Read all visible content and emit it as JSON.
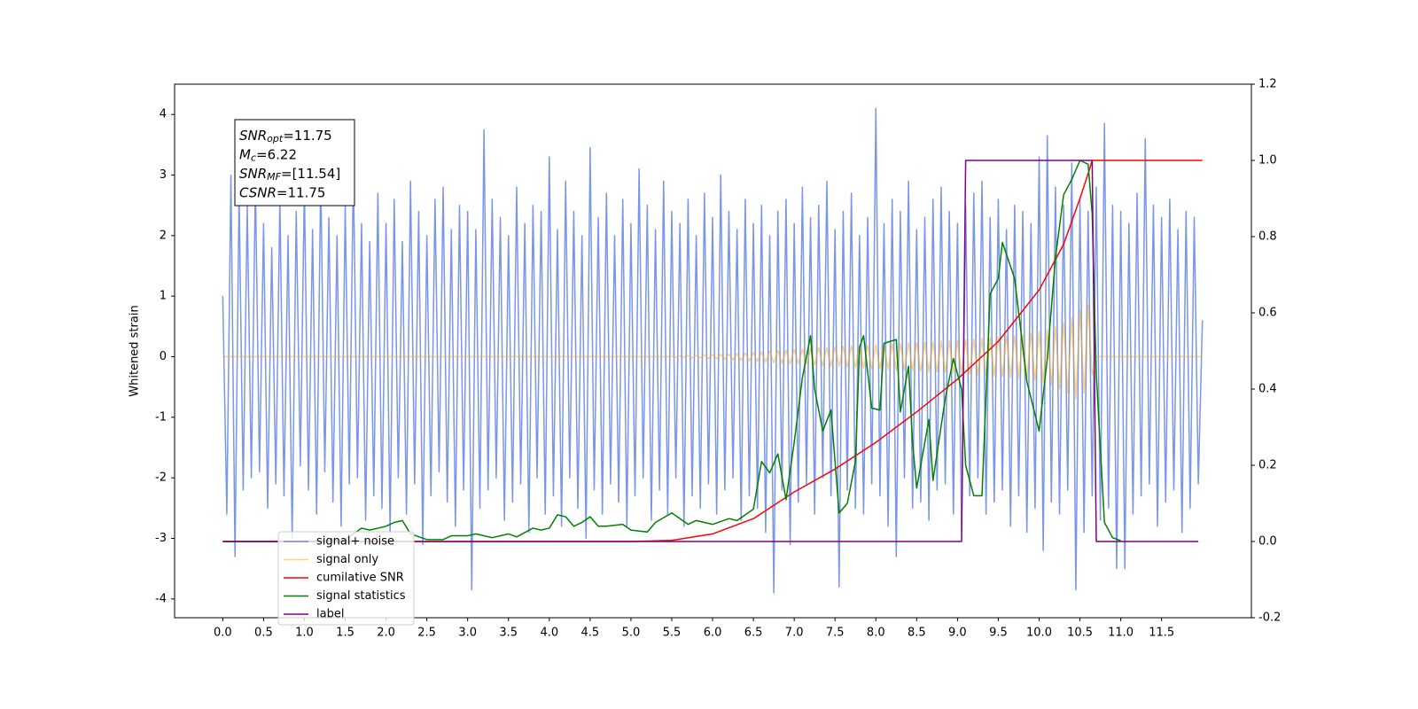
{
  "chart_data": {
    "type": "line",
    "ylabel": "Whitened strain",
    "annotations": [
      {
        "base": "SNR",
        "sub": "opt",
        "text": "=11.75"
      },
      {
        "base": "M",
        "sub": "c",
        "text": "=6.22"
      },
      {
        "base": "SNR",
        "sub": "MF",
        "text": "=[11.54]"
      },
      {
        "base": "CSNR",
        "text": "=11.75"
      }
    ],
    "xlim": [
      -0.59,
      12.6
    ],
    "ylim": [
      -4.31,
      4.5
    ],
    "y2lim": [
      -0.2,
      1.2
    ],
    "xticks": [
      {
        "value": 0,
        "label": "0.0"
      },
      0.5,
      {
        "value": 1,
        "label": "1.0"
      },
      1.5,
      {
        "value": 2,
        "label": "2.0"
      },
      2.5,
      {
        "value": 3,
        "label": "3.0"
      },
      3.5,
      {
        "value": 4,
        "label": "4.0"
      },
      4.5,
      {
        "value": 5,
        "label": "5.0"
      },
      5.5,
      {
        "value": 6,
        "label": "6.0"
      },
      6.5,
      {
        "value": 7,
        "label": "7.0"
      },
      7.5,
      {
        "value": 8,
        "label": "8.0"
      },
      8.5,
      {
        "value": 9,
        "label": "9.0"
      },
      9.5,
      {
        "value": 10,
        "label": "10.0"
      },
      10.5,
      {
        "value": 11,
        "label": "11.0"
      },
      11.5
    ],
    "yticks": [
      -4,
      -3,
      -2,
      -1,
      0,
      1,
      2,
      3,
      4
    ],
    "y2ticks": [
      -0.2,
      {
        "value": 0,
        "label": "0.0"
      },
      0.2,
      0.4,
      0.6,
      0.8,
      {
        "value": 1,
        "label": "1.0"
      },
      {
        "value": 1.2,
        "label": "1.2"
      }
    ],
    "legend": "lower left",
    "x": [
      0,
      0.05,
      0.1,
      0.15,
      0.2,
      0.25,
      0.3,
      0.35,
      0.4,
      0.45,
      0.5,
      0.55,
      0.6,
      0.65,
      0.7,
      0.75,
      0.8,
      0.85,
      0.9,
      0.95,
      1,
      1.05,
      1.1,
      1.15,
      1.2,
      1.25,
      1.3,
      1.35,
      1.4,
      1.45,
      1.5,
      1.55,
      1.6,
      1.65,
      1.7,
      1.75,
      1.8,
      1.85,
      1.9,
      1.95,
      2,
      2.05,
      2.1,
      2.15,
      2.2,
      2.25,
      2.3,
      2.35,
      2.4,
      2.45,
      2.5,
      2.55,
      2.6,
      2.65,
      2.7,
      2.75,
      2.8,
      2.85,
      2.9,
      2.95,
      3,
      3.05,
      3.1,
      3.15,
      3.2,
      3.25,
      3.3,
      3.35,
      3.4,
      3.45,
      3.5,
      3.55,
      3.6,
      3.65,
      3.7,
      3.75,
      3.8,
      3.85,
      3.9,
      3.95,
      4,
      4.05,
      4.1,
      4.15,
      4.2,
      4.25,
      4.3,
      4.35,
      4.4,
      4.45,
      4.5,
      4.55,
      4.6,
      4.65,
      4.7,
      4.75,
      4.8,
      4.85,
      4.9,
      4.95,
      5,
      5.05,
      5.1,
      5.15,
      5.2,
      5.25,
      5.3,
      5.35,
      5.4,
      5.45,
      5.5,
      5.55,
      5.6,
      5.65,
      5.7,
      5.75,
      5.8,
      5.85,
      5.9,
      5.95,
      6,
      6.05,
      6.1,
      6.15,
      6.2,
      6.25,
      6.3,
      6.35,
      6.4,
      6.45,
      6.5,
      6.55,
      6.6,
      6.65,
      6.7,
      6.75,
      6.8,
      6.85,
      6.9,
      6.95,
      7,
      7.05,
      7.1,
      7.15,
      7.2,
      7.25,
      7.3,
      7.35,
      7.4,
      7.45,
      7.5,
      7.55,
      7.6,
      7.65,
      7.7,
      7.75,
      7.8,
      7.85,
      7.9,
      7.95,
      8,
      8.05,
      8.1,
      8.15,
      8.2,
      8.25,
      8.3,
      8.35,
      8.4,
      8.45,
      8.5,
      8.55,
      8.6,
      8.65,
      8.7,
      8.75,
      8.8,
      8.85,
      8.9,
      8.95,
      9,
      9.05,
      9.1,
      9.15,
      9.2,
      9.25,
      9.3,
      9.35,
      9.4,
      9.45,
      9.5,
      9.55,
      9.6,
      9.65,
      9.7,
      9.75,
      9.8,
      9.85,
      9.9,
      9.95,
      10,
      10.05,
      10.1,
      10.15,
      10.2,
      10.25,
      10.3,
      10.35,
      10.4,
      10.45,
      10.5,
      10.55,
      10.6,
      10.65,
      10.7,
      10.75,
      10.8,
      10.85,
      10.9,
      10.95,
      11,
      11.05,
      11.1,
      11.15,
      11.2,
      11.25,
      11.3,
      11.35,
      11.4,
      11.45,
      11.5,
      11.55,
      11.6,
      11.65,
      11.7,
      11.75,
      11.8,
      11.85,
      11.9,
      11.95,
      12
    ],
    "series": [
      {
        "name": "signal+ noise",
        "color": "#4169e1",
        "values": [
          1.0,
          -2.6,
          3.0,
          -3.3,
          2.7,
          -2.2,
          2.5,
          -2.0,
          2.9,
          -1.9,
          2.2,
          -2.5,
          1.8,
          -2.1,
          2.6,
          -2.3,
          2.0,
          -3.0,
          2.4,
          -1.8,
          2.8,
          -2.2,
          2.1,
          -2.6,
          3.0,
          -1.9,
          2.3,
          -2.4,
          2.0,
          -2.8,
          2.5,
          -2.1,
          3.1,
          -2.0,
          2.2,
          -2.7,
          1.9,
          -2.3,
          2.7,
          -2.5,
          2.2,
          -2.9,
          2.6,
          -2.0,
          1.9,
          -2.6,
          2.9,
          -2.1,
          2.4,
          -3.1,
          2.0,
          -2.3,
          2.6,
          -1.9,
          2.8,
          -2.4,
          2.1,
          -2.8,
          2.5,
          -2.2,
          2.4,
          -3.85,
          2.1,
          -2.5,
          3.75,
          -2.2,
          2.6,
          -2.0,
          2.3,
          -2.7,
          2.0,
          -2.4,
          2.8,
          -2.1,
          2.2,
          -2.9,
          2.5,
          -2.0,
          2.4,
          -2.6,
          3.3,
          -2.3,
          2.1,
          -2.8,
          2.9,
          -2.0,
          2.4,
          -2.5,
          2.0,
          -3.0,
          3.45,
          -2.2,
          2.3,
          -2.6,
          2.7,
          -2.1,
          2.0,
          -2.4,
          2.6,
          -2.8,
          2.2,
          -2.3,
          3.1,
          -2.0,
          2.5,
          -2.7,
          2.1,
          -2.2,
          2.9,
          -2.6,
          2.4,
          -2.0,
          2.2,
          -2.8,
          2.6,
          -2.3,
          2.0,
          -2.5,
          2.7,
          -2.1,
          2.3,
          -2.6,
          3.0,
          -2.2,
          2.4,
          -2.0,
          2.1,
          -2.7,
          2.6,
          -2.3,
          2.2,
          -2.5,
          2.5,
          -2.9,
          2.0,
          -3.9,
          2.4,
          -2.2,
          2.6,
          -3.1,
          2.2,
          -2.4,
          2.8,
          -2.1,
          2.3,
          -2.6,
          2.5,
          -2.0,
          2.9,
          -2.3,
          2.1,
          -3.8,
          2.4,
          -2.2,
          2.7,
          -2.5,
          2.0,
          -2.6,
          2.3,
          -2.1,
          4.1,
          -2.3,
          2.2,
          -2.8,
          2.6,
          -3.3,
          2.4,
          -2.0,
          2.9,
          -2.5,
          2.1,
          -2.4,
          2.3,
          -2.7,
          2.6,
          -2.2,
          2.8,
          -2.1,
          2.4,
          -2.6,
          2.2,
          -2.9,
          2.5,
          -2.3,
          2.7,
          -2.0,
          2.9,
          -2.6,
          2.3,
          -2.4,
          2.6,
          -2.2,
          2.1,
          -2.8,
          2.5,
          -2.3,
          2.4,
          -2.9,
          2.2,
          -2.5,
          3.3,
          -3.2,
          3.65,
          -2.4,
          2.8,
          -2.6,
          2.5,
          -2.2,
          3.2,
          -3.85,
          2.6,
          -2.9,
          2.4,
          -2.3,
          2.8,
          -2.7,
          3.85,
          -2.5,
          2.5,
          -3.5,
          2.4,
          -3.5,
          2.2,
          -2.6,
          2.7,
          -2.3,
          3.6,
          -2.1,
          2.5,
          -2.8,
          2.3,
          -2.4,
          2.6,
          -2.2,
          2.1,
          -2.9,
          2.4,
          -2.5,
          2.3,
          -2.1,
          0.6
        ]
      },
      {
        "name": "signal only",
        "color": "#ffa500",
        "values": [
          0,
          0,
          0,
          0,
          0,
          0,
          0,
          0,
          0,
          0,
          0,
          0,
          0,
          0,
          0,
          0,
          0,
          0,
          0,
          0,
          0,
          0,
          0,
          0,
          0,
          0,
          0,
          0,
          0,
          0,
          0,
          0,
          0,
          0,
          0,
          0,
          0,
          0,
          0,
          0,
          0,
          0,
          0,
          0,
          0,
          0,
          0,
          0,
          0,
          0,
          0,
          0,
          0,
          0,
          0,
          0,
          0,
          0,
          0,
          0,
          0,
          0,
          0,
          0,
          0,
          0,
          0,
          0,
          0,
          0,
          0,
          0,
          0,
          0,
          0,
          0,
          0,
          0,
          0,
          0,
          0,
          0,
          0,
          0,
          0,
          0,
          0,
          0,
          0,
          0,
          0,
          0,
          0,
          0,
          0,
          0,
          0,
          0,
          0,
          0,
          0,
          0,
          0,
          0,
          0,
          0,
          0,
          0,
          0,
          0,
          0.01,
          -0.01,
          0.01,
          -0.01,
          0.02,
          -0.02,
          0.02,
          -0.02,
          0.03,
          -0.03,
          0.03,
          -0.03,
          0.04,
          -0.04,
          0.04,
          -0.05,
          0.05,
          -0.06,
          0.06,
          -0.07,
          0.07,
          -0.08,
          0.08,
          -0.09,
          0.09,
          -0.1,
          0.1,
          -0.11,
          0.11,
          -0.12,
          0.12,
          -0.12,
          0.13,
          -0.13,
          0.14,
          -0.14,
          0.15,
          -0.15,
          0.15,
          -0.16,
          0.16,
          -0.16,
          0.17,
          -0.17,
          0.18,
          -0.18,
          0.18,
          -0.19,
          0.19,
          -0.2,
          0.2,
          -0.2,
          0.21,
          -0.21,
          0.21,
          -0.22,
          0.22,
          -0.22,
          0.23,
          -0.23,
          0.23,
          -0.24,
          0.24,
          -0.25,
          0.25,
          -0.25,
          0.26,
          -0.26,
          0.26,
          -0.27,
          0.27,
          -0.28,
          0.28,
          -0.29,
          0.29,
          -0.3,
          0.3,
          -0.31,
          0.31,
          -0.32,
          0.33,
          -0.33,
          0.34,
          -0.35,
          0.35,
          -0.36,
          0.37,
          -0.38,
          0.39,
          -0.4,
          0.42,
          -0.43,
          0.45,
          -0.47,
          0.5,
          -0.53,
          0.57,
          -0.6,
          0.65,
          -0.7,
          0.78,
          -0.6,
          0.85,
          -0.3,
          0,
          0,
          0,
          0,
          0,
          0,
          0,
          0,
          0,
          0,
          0,
          0,
          0,
          0,
          0,
          0,
          0,
          0,
          0,
          0,
          0,
          0,
          0,
          0,
          0,
          0,
          0
        ]
      },
      {
        "name": "cumilative SNR",
        "color": "#ff0000",
        "axis": "y2",
        "x": [
          0,
          5.0,
          5.5,
          6.0,
          6.5,
          7.0,
          7.5,
          8.0,
          8.5,
          9.0,
          9.5,
          10.0,
          10.3,
          10.5,
          10.6,
          10.65,
          12.0
        ],
        "values": [
          0,
          0,
          0.003,
          0.02,
          0.06,
          0.13,
          0.19,
          0.26,
          0.34,
          0.426,
          0.525,
          0.66,
          0.78,
          0.9,
          0.965,
          1.0,
          1.0
        ]
      },
      {
        "name": "signal statistics",
        "color": "#008000",
        "axis": "y2",
        "x": [
          0,
          0.5,
          1.0,
          1.5,
          1.7,
          1.8,
          2.0,
          2.1,
          2.2,
          2.3,
          2.5,
          2.7,
          2.8,
          3.0,
          3.1,
          3.3,
          3.5,
          3.6,
          3.8,
          3.9,
          4.0,
          4.1,
          4.2,
          4.3,
          4.4,
          4.5,
          4.6,
          4.7,
          4.9,
          5.0,
          5.2,
          5.3,
          5.5,
          5.7,
          5.8,
          6.0,
          6.2,
          6.3,
          6.4,
          6.5,
          6.6,
          6.7,
          6.8,
          6.9,
          7.0,
          7.1,
          7.2,
          7.25,
          7.35,
          7.45,
          7.55,
          7.65,
          7.75,
          7.8,
          7.85,
          7.95,
          8.05,
          8.1,
          8.25,
          8.3,
          8.4,
          8.45,
          8.5,
          8.65,
          8.7,
          8.85,
          8.95,
          9.05,
          9.1,
          9.2,
          9.3,
          9.4,
          9.5,
          9.55,
          9.7,
          9.85,
          10.0,
          10.1,
          10.2,
          10.3,
          10.4,
          10.5,
          10.6,
          10.65,
          10.7,
          10.8,
          10.9,
          11.0
        ],
        "values": [
          0,
          0,
          0,
          0.005,
          0.035,
          0.03,
          0.04,
          0.05,
          0.055,
          0.02,
          0.005,
          0.005,
          0.015,
          0.015,
          0.02,
          0.01,
          0.02,
          0.012,
          0.035,
          0.03,
          0.035,
          0.07,
          0.065,
          0.04,
          0.05,
          0.065,
          0.04,
          0.04,
          0.045,
          0.03,
          0.025,
          0.05,
          0.075,
          0.045,
          0.055,
          0.045,
          0.06,
          0.055,
          0.07,
          0.085,
          0.21,
          0.18,
          0.23,
          0.11,
          0.26,
          0.43,
          0.54,
          0.4,
          0.29,
          0.345,
          0.075,
          0.1,
          0.21,
          0.51,
          0.54,
          0.35,
          0.345,
          0.52,
          0.53,
          0.34,
          0.46,
          0.26,
          0.14,
          0.32,
          0.16,
          0.375,
          0.48,
          0.4,
          0.2,
          0.12,
          0.12,
          0.65,
          0.69,
          0.785,
          0.69,
          0.42,
          0.29,
          0.48,
          0.745,
          0.91,
          0.95,
          1.0,
          0.99,
          0.86,
          0.44,
          0.05,
          0.01,
          0.002
        ]
      },
      {
        "name": "label",
        "color": "#800080",
        "axis": "y2",
        "x": [
          0,
          9.05,
          9.1,
          10.65,
          10.7,
          11.95
        ],
        "values": [
          0,
          0,
          1,
          1,
          0,
          0
        ]
      }
    ]
  }
}
